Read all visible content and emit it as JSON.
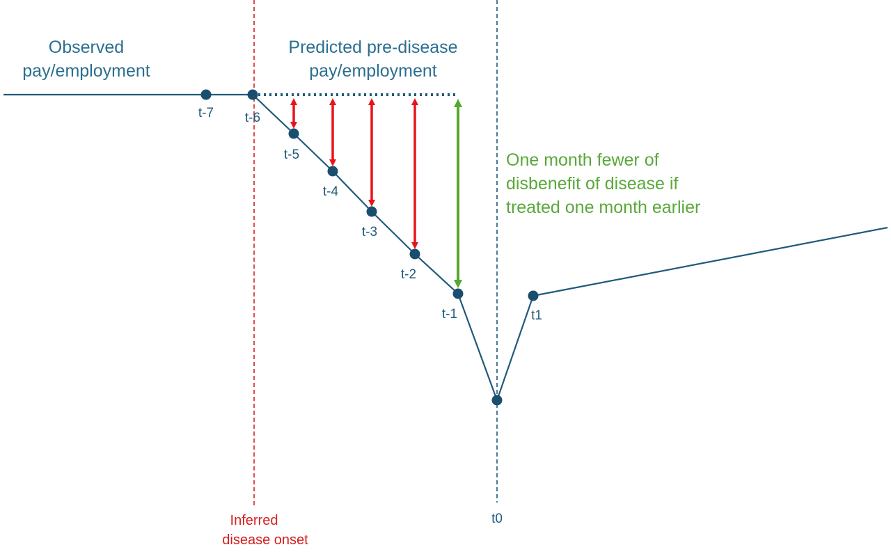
{
  "labels": {
    "observed": [
      "Observed",
      "pay/employment"
    ],
    "predicted": [
      "Predicted pre-disease",
      "pay/employment"
    ],
    "benefit": [
      "One month fewer of",
      "disbenefit of disease if",
      "treated one month earlier"
    ],
    "onset": [
      "Inferred",
      "disease onset"
    ],
    "t0": "t0"
  },
  "time_points": [
    {
      "label": "t-7"
    },
    {
      "label": "t-6"
    },
    {
      "label": "t-5"
    },
    {
      "label": "t-4"
    },
    {
      "label": "t-3"
    },
    {
      "label": "t-2"
    },
    {
      "label": "t-1"
    },
    {
      "label": "t1"
    }
  ],
  "colors": {
    "line": "#1f5a7a",
    "point": "#1a4e6e",
    "observed_text": "#2a6f8f",
    "onset": "#d62020",
    "red_arrow": "#e8141b",
    "green_arrow": "#55a830",
    "green_text": "#5aa83a",
    "dotted": "#1f5a7a"
  }
}
